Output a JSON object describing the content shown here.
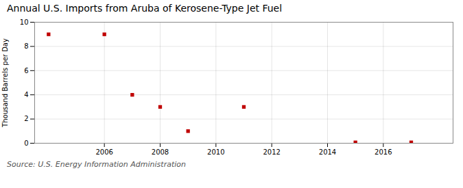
{
  "chart_data": {
    "type": "scatter",
    "title": "Annual U.S. Imports from Aruba of Kerosene-Type Jet Fuel",
    "ylabel": "Thousand Barrels per Day",
    "source": "Source: U.S. Energy Information Administration",
    "x": [
      2004,
      2006,
      2007,
      2008,
      2009,
      2011,
      2015,
      2017
    ],
    "values": [
      9.0,
      9.0,
      4.0,
      3.0,
      1.0,
      3.0,
      0.07,
      0.07
    ],
    "color": "#c00000",
    "marker": "square",
    "xlim": [
      2003.5,
      2018.5
    ],
    "xticks": [
      2006,
      2008,
      2010,
      2012,
      2014,
      2016
    ],
    "ylim": [
      0,
      10
    ],
    "yticks": [
      0,
      2,
      4,
      6,
      8,
      10
    ],
    "grid": true
  }
}
